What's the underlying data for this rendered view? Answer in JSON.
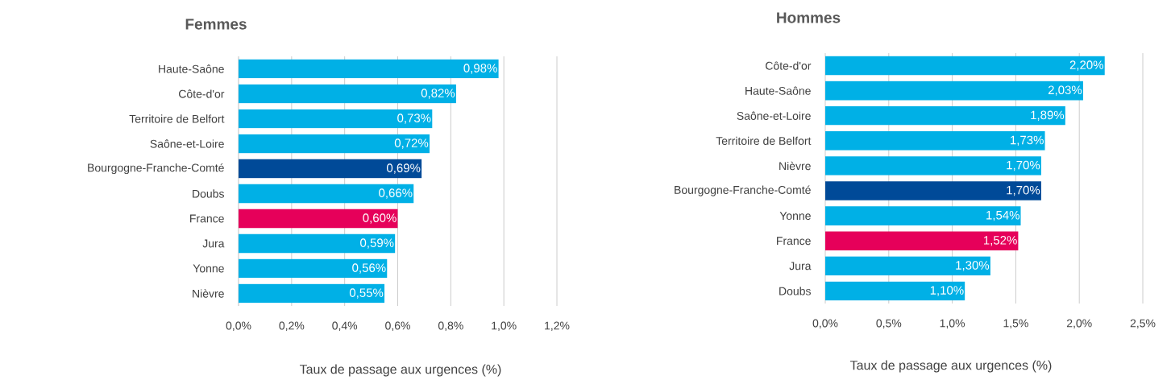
{
  "chart_data": [
    {
      "type": "bar",
      "orientation": "horizontal",
      "title": "Femmes",
      "xlabel": "Taux de passage aux urgences (%)",
      "categories": [
        "Haute-Saône",
        "Côte-d'or",
        "Territoire de Belfort",
        "Saône-et-Loire",
        "Bourgogne-Franche-Comté",
        "Doubs",
        "France",
        "Jura",
        "Yonne",
        "Nièvre"
      ],
      "values": [
        0.98,
        0.82,
        0.73,
        0.72,
        0.69,
        0.66,
        0.6,
        0.59,
        0.56,
        0.55
      ],
      "value_labels": [
        "0,98%",
        "0,82%",
        "0,73%",
        "0,72%",
        "0,69%",
        "0,66%",
        "0,60%",
        "0,59%",
        "0,56%",
        "0,55%"
      ],
      "colors": [
        "#00b0e6",
        "#00b0e6",
        "#00b0e6",
        "#00b0e6",
        "#004a98",
        "#00b0e6",
        "#e6005a",
        "#00b0e6",
        "#00b0e6",
        "#00b0e6"
      ],
      "xlim": [
        0,
        1.2
      ],
      "xticks": [
        {
          "value": 0,
          "label": "0,0%"
        },
        {
          "value": 0.2,
          "label": "0,2%"
        },
        {
          "value": 0.4,
          "label": "0,4%"
        },
        {
          "value": 0.6,
          "label": "0,6%"
        },
        {
          "value": 0.8,
          "label": "0,8%"
        },
        {
          "value": 1.0,
          "label": "1,0%"
        },
        {
          "value": 1.2,
          "label": "1,2%"
        }
      ],
      "grid": "x"
    },
    {
      "type": "bar",
      "orientation": "horizontal",
      "title": "Hommes",
      "xlabel": "Taux de passage aux urgences (%)",
      "categories": [
        "Côte-d'or",
        "Haute-Saône",
        "Saône-et-Loire",
        "Territoire de Belfort",
        "Nièvre",
        "Bourgogne-Franche-Comté",
        "Yonne",
        "France",
        "Jura",
        "Doubs"
      ],
      "values": [
        2.2,
        2.03,
        1.89,
        1.73,
        1.7,
        1.7,
        1.54,
        1.52,
        1.3,
        1.1
      ],
      "value_labels": [
        "2,20%",
        "2,03%",
        "1,89%",
        "1,73%",
        "1,70%",
        "1,70%",
        "1,54%",
        "1,52%",
        "1,30%",
        "1,10%"
      ],
      "colors": [
        "#00b0e6",
        "#00b0e6",
        "#00b0e6",
        "#00b0e6",
        "#00b0e6",
        "#004a98",
        "#00b0e6",
        "#e6005a",
        "#00b0e6",
        "#00b0e6"
      ],
      "xlim": [
        0,
        2.5
      ],
      "xticks": [
        {
          "value": 0,
          "label": "0,0%"
        },
        {
          "value": 0.5,
          "label": "0,5%"
        },
        {
          "value": 1.0,
          "label": "1,0%"
        },
        {
          "value": 1.5,
          "label": "1,5%"
        },
        {
          "value": 2.0,
          "label": "2,0%"
        },
        {
          "value": 2.5,
          "label": "2,5%"
        }
      ],
      "grid": "x"
    }
  ]
}
